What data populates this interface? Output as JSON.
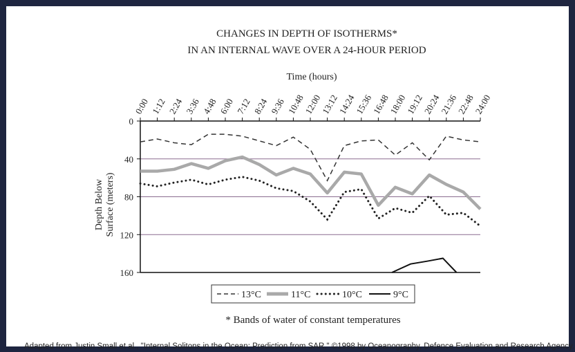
{
  "chart_data": {
    "type": "line",
    "title_lines": [
      "CHANGES IN DEPTH OF ISOTHERMS*",
      "IN AN INTERNAL WAVE OVER A 24-HOUR PERIOD"
    ],
    "xlabel": "Time (hours)",
    "ylabel_lines": [
      "Depth Below",
      "Surface (meters)"
    ],
    "x_ticks": [
      "0:00",
      "1:12",
      "2:24",
      "3:36",
      "4:48",
      "6:00",
      "7:12",
      "8:24",
      "9:36",
      "10:48",
      "12:00",
      "13:12",
      "14:24",
      "15:36",
      "16:48",
      "18:00",
      "19:12",
      "20:24",
      "21:36",
      "22:48",
      "24:00"
    ],
    "y_ticks": [
      0,
      40,
      80,
      120,
      160
    ],
    "ylim": [
      0,
      160
    ],
    "y_inverted": true,
    "grid": "horizontal",
    "legend_position": "bottom",
    "series": [
      {
        "name": "13°C",
        "style": "dashed",
        "color": "#333333",
        "x": [
          0,
          1,
          2,
          3,
          4,
          5,
          6,
          7,
          8,
          9,
          10,
          11,
          12,
          13,
          14,
          15,
          16,
          17,
          18,
          19,
          20
        ],
        "y": [
          22,
          19,
          23,
          25,
          14,
          14,
          16,
          21,
          26,
          17,
          30,
          63,
          26,
          21,
          20,
          36,
          23,
          41,
          16,
          20,
          22
        ]
      },
      {
        "name": "11°C",
        "style": "thick",
        "color": "#a9a9a9",
        "x": [
          0,
          1,
          2,
          3,
          4,
          5,
          6,
          7,
          8,
          9,
          10,
          11,
          12,
          13,
          14,
          15,
          16,
          17,
          18,
          19,
          20
        ],
        "y": [
          53,
          53,
          51,
          45,
          50,
          42,
          38,
          46,
          57,
          50,
          56,
          76,
          54,
          56,
          89,
          70,
          77,
          57,
          67,
          75,
          93
        ]
      },
      {
        "name": "10°C",
        "style": "dotted",
        "color": "#222222",
        "x": [
          0,
          1,
          2,
          3,
          4,
          5,
          6,
          7,
          8,
          9,
          10,
          11,
          12,
          13,
          14,
          15,
          16,
          17,
          18,
          19,
          20
        ],
        "y": [
          66,
          69,
          65,
          62,
          67,
          62,
          59,
          63,
          71,
          74,
          85,
          104,
          75,
          72,
          103,
          92,
          97,
          79,
          99,
          97,
          111
        ]
      },
      {
        "name": "9°C",
        "style": "solid",
        "color": "#111111",
        "x": [
          14.8,
          15.9,
          16.9,
          17.8,
          18.6
        ],
        "y": [
          160,
          151,
          148,
          145,
          160
        ]
      }
    ],
    "footnote": "* Bands of water of constant temperatures"
  },
  "credit": "Adapted from Justin Small et al., \"Internal Solitons in the Ocean: Prediction from SAR.\" ©1998 by Oceanography, Defence Evaluation and Research Agency."
}
